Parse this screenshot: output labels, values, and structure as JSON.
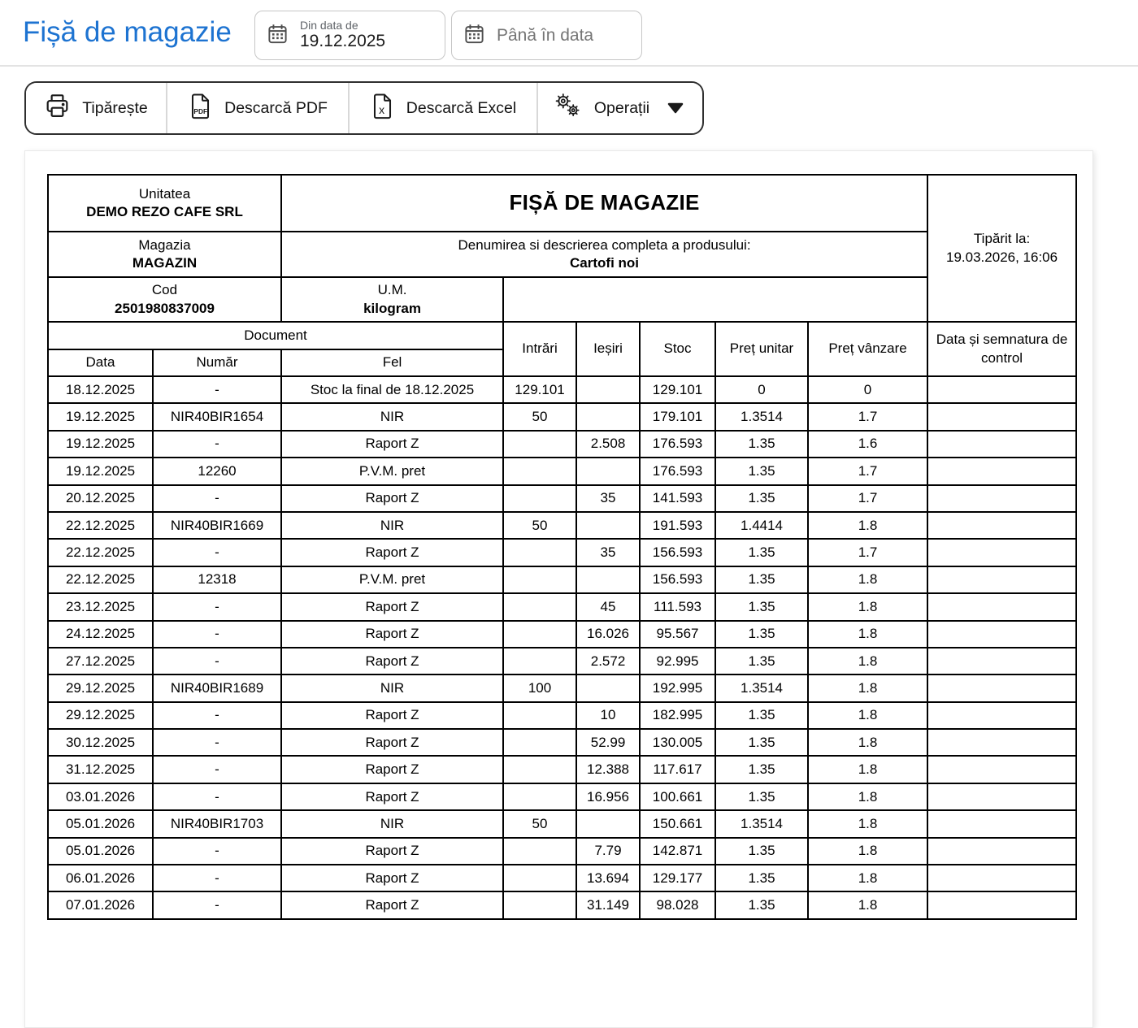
{
  "page": {
    "title": "Fișă de magazie"
  },
  "filters": {
    "from": {
      "label": "Din data de",
      "value": "19.12.2025",
      "icon": "calendar-icon"
    },
    "to": {
      "placeholder": "Până în data",
      "icon": "calendar-icon"
    }
  },
  "toolbar": {
    "print": {
      "label": "Tipărește",
      "icon": "printer-icon"
    },
    "download_pdf": {
      "label": "Descarcă PDF",
      "icon": "pdf-file-icon"
    },
    "download_excel": {
      "label": "Descarcă Excel",
      "icon": "excel-file-icon"
    },
    "operations": {
      "label": "Operații",
      "icon": "gears-icon",
      "caret_icon": "caret-down-icon"
    }
  },
  "sheet": {
    "title": "FIȘĂ DE MAGAZIE",
    "printed_at_label": "Tipărit la:",
    "printed_at_value": "19.03.2026, 16:06",
    "unit_label": "Unitatea",
    "unit_value": "DEMO REZO CAFE SRL",
    "store_label": "Magazia",
    "store_value": "MAGAZIN",
    "product_label": "Denumirea si descrierea completa a produsului:",
    "product_value": "Cartofi noi",
    "code_label": "Cod",
    "code_value": "2501980837009",
    "um_label": "U.M.",
    "um_value": "kilogram",
    "document_group_label": "Document",
    "columns": {
      "data": "Data",
      "numar": "Număr",
      "fel": "Fel",
      "intrari": "Intrări",
      "iesiri": "Ieșiri",
      "stoc": "Stoc",
      "pret_unitar": "Preț unitar",
      "pret_vanzare": "Preț vânzare",
      "semnatura": "Data și semnatura de control"
    },
    "rows": [
      [
        "18.12.2025",
        "-",
        "Stoc la final de 18.12.2025",
        "129.101",
        "",
        "129.101",
        "0",
        "0"
      ],
      [
        "19.12.2025",
        "NIR40BIR1654",
        "NIR",
        "50",
        "",
        "179.101",
        "1.3514",
        "1.7"
      ],
      [
        "19.12.2025",
        "-",
        "Raport Z",
        "",
        "2.508",
        "176.593",
        "1.35",
        "1.6"
      ],
      [
        "19.12.2025",
        "12260",
        "P.V.M. pret",
        "",
        "",
        "176.593",
        "1.35",
        "1.7"
      ],
      [
        "20.12.2025",
        "-",
        "Raport Z",
        "",
        "35",
        "141.593",
        "1.35",
        "1.7"
      ],
      [
        "22.12.2025",
        "NIR40BIR1669",
        "NIR",
        "50",
        "",
        "191.593",
        "1.4414",
        "1.8"
      ],
      [
        "22.12.2025",
        "-",
        "Raport Z",
        "",
        "35",
        "156.593",
        "1.35",
        "1.7"
      ],
      [
        "22.12.2025",
        "12318",
        "P.V.M. pret",
        "",
        "",
        "156.593",
        "1.35",
        "1.8"
      ],
      [
        "23.12.2025",
        "-",
        "Raport Z",
        "",
        "45",
        "111.593",
        "1.35",
        "1.8"
      ],
      [
        "24.12.2025",
        "-",
        "Raport Z",
        "",
        "16.026",
        "95.567",
        "1.35",
        "1.8"
      ],
      [
        "27.12.2025",
        "-",
        "Raport Z",
        "",
        "2.572",
        "92.995",
        "1.35",
        "1.8"
      ],
      [
        "29.12.2025",
        "NIR40BIR1689",
        "NIR",
        "100",
        "",
        "192.995",
        "1.3514",
        "1.8"
      ],
      [
        "29.12.2025",
        "-",
        "Raport Z",
        "",
        "10",
        "182.995",
        "1.35",
        "1.8"
      ],
      [
        "30.12.2025",
        "-",
        "Raport Z",
        "",
        "52.99",
        "130.005",
        "1.35",
        "1.8"
      ],
      [
        "31.12.2025",
        "-",
        "Raport Z",
        "",
        "12.388",
        "117.617",
        "1.35",
        "1.8"
      ],
      [
        "03.01.2026",
        "-",
        "Raport Z",
        "",
        "16.956",
        "100.661",
        "1.35",
        "1.8"
      ],
      [
        "05.01.2026",
        "NIR40BIR1703",
        "NIR",
        "50",
        "",
        "150.661",
        "1.3514",
        "1.8"
      ],
      [
        "05.01.2026",
        "-",
        "Raport Z",
        "",
        "7.79",
        "142.871",
        "1.35",
        "1.8"
      ],
      [
        "06.01.2026",
        "-",
        "Raport Z",
        "",
        "13.694",
        "129.177",
        "1.35",
        "1.8"
      ],
      [
        "07.01.2026",
        "-",
        "Raport Z",
        "",
        "31.149",
        "98.028",
        "1.35",
        "1.8"
      ]
    ]
  },
  "colors": {
    "accent_blue": "#1d73d1",
    "table_border": "#000000",
    "toolbar_border": "#2f2f2f",
    "muted_text": "#5f6368"
  }
}
